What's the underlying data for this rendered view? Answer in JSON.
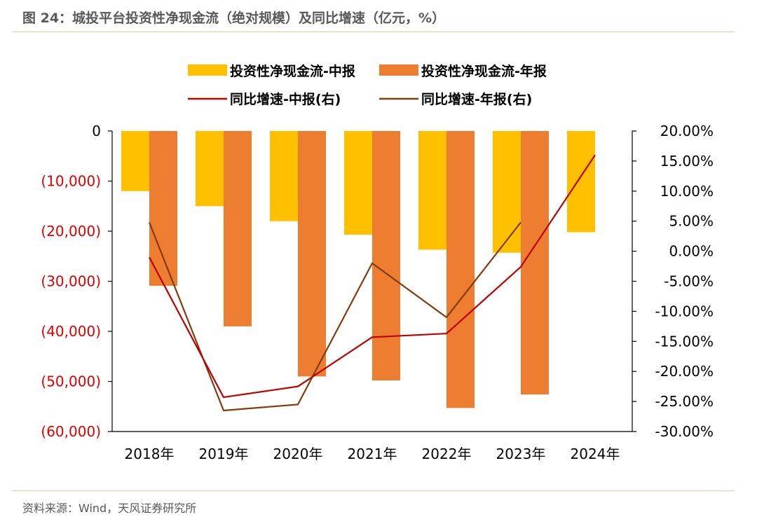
{
  "header": {
    "title": "图 24：城投平台投资性净现金流（绝对规模）及同比增速（亿元，%）"
  },
  "footer": {
    "source": "资料来源：Wind，天风证券研究所"
  },
  "colors": {
    "bar_midyear": "#ffc000",
    "bar_annual": "#ed7d31",
    "line_midyear": "#c00000",
    "line_annual": "#843c0c",
    "left_tick_negative": "#e00000"
  },
  "chart_data": {
    "type": "bar",
    "categories": [
      "2018年",
      "2019年",
      "2020年",
      "2021年",
      "2022年",
      "2023年",
      "2024年"
    ],
    "series": [
      {
        "name": "投资性净现金流-中报",
        "kind": "bar",
        "axis": "left",
        "values": [
          -12000,
          -15000,
          -18000,
          -20700,
          -23700,
          -24300,
          -20200
        ]
      },
      {
        "name": "投资性净现金流-年报",
        "kind": "bar",
        "axis": "left",
        "values": [
          -30900,
          -39000,
          -49000,
          -49800,
          -55300,
          -52600,
          null
        ]
      },
      {
        "name": "同比增速-中报(右)",
        "kind": "line",
        "axis": "right",
        "values": [
          -1.0,
          -24.3,
          -22.5,
          -14.3,
          -13.7,
          -2.6,
          16.0
        ]
      },
      {
        "name": "同比增速-年报(右)",
        "kind": "line",
        "axis": "right",
        "values": [
          4.8,
          -26.5,
          -25.5,
          -2.0,
          -11.0,
          4.8,
          null
        ]
      }
    ],
    "left_axis": {
      "ylim": [
        -60000,
        0
      ],
      "ticks": [
        "0",
        "(10,000)",
        "(20,000)",
        "(30,000)",
        "(40,000)",
        "(50,000)",
        "(60,000)"
      ]
    },
    "right_axis": {
      "ylim": [
        -30,
        20
      ],
      "ticks": [
        "20.00%",
        "15.00%",
        "10.00%",
        "5.00%",
        "0.00%",
        "-5.00%",
        "-10.00%",
        "-15.00%",
        "-20.00%",
        "-25.00%",
        "-30.00%"
      ]
    },
    "legend_position": "top",
    "grid": false
  }
}
